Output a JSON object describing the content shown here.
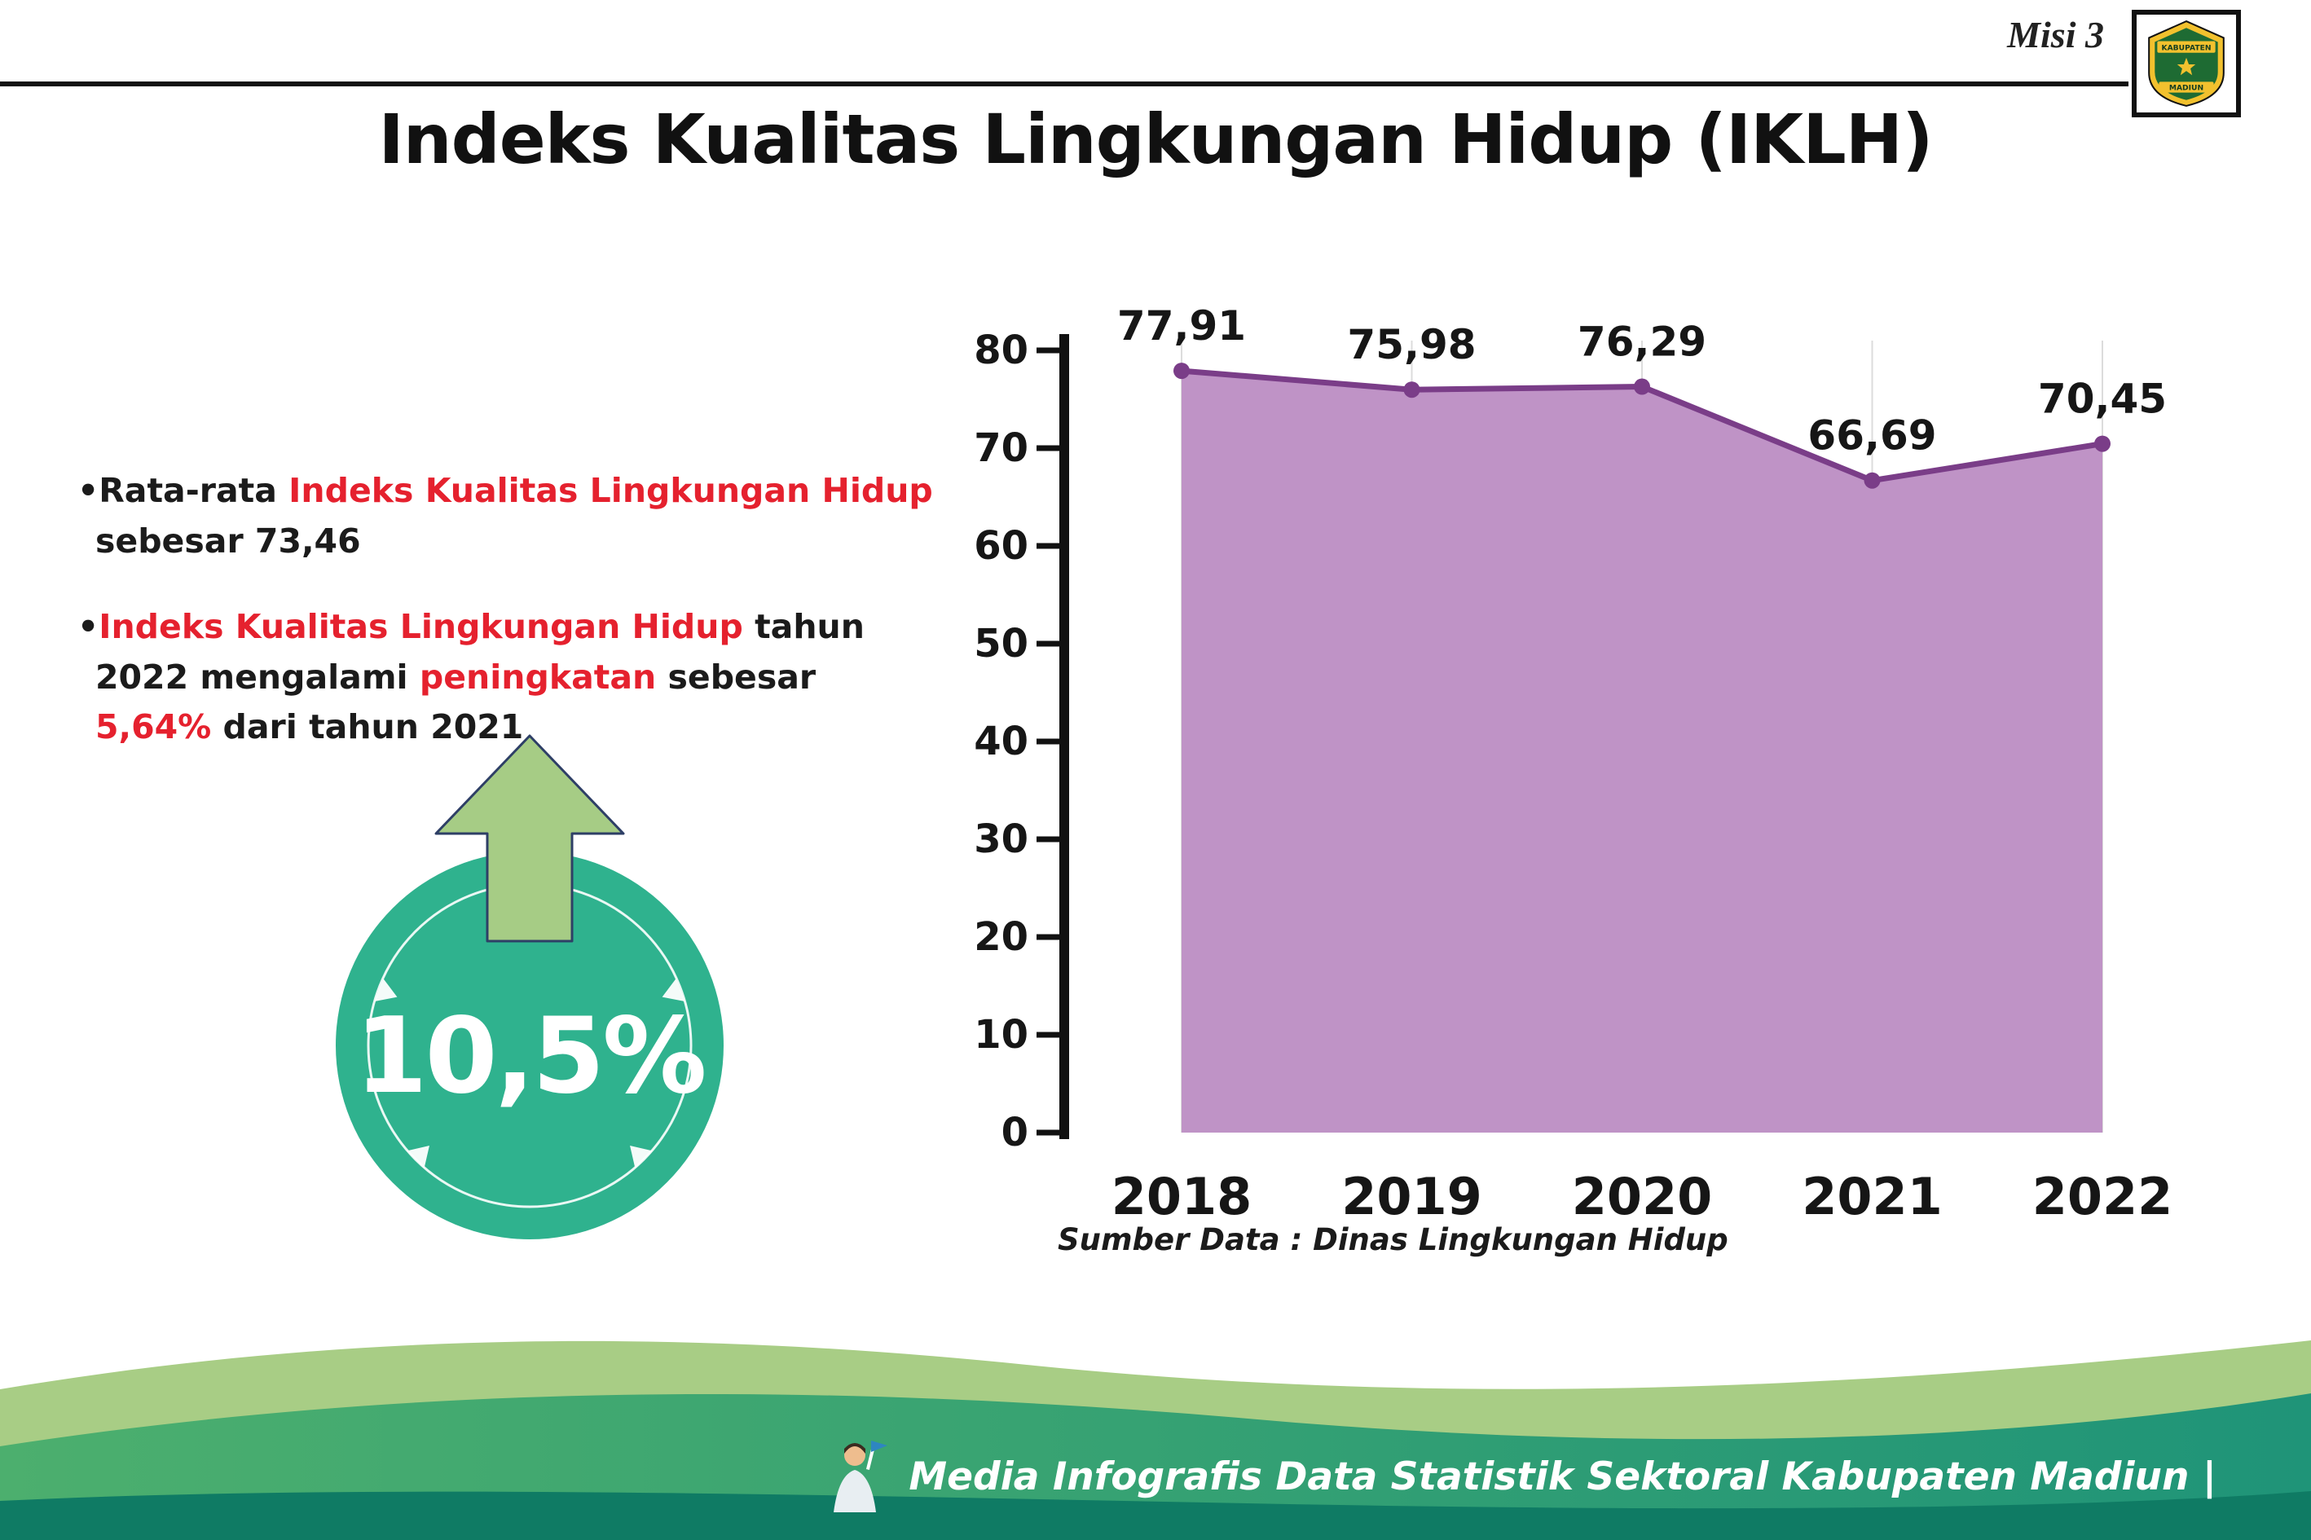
{
  "header": {
    "misi_label": "Misi 3",
    "logo": {
      "top_text": "KABUPATEN",
      "bottom_text": "MADIUN"
    }
  },
  "title": "Indeks Kualitas Lingkungan Hidup (IKLH)",
  "bullets": {
    "dot": "•",
    "b1": {
      "prefix": "Rata-rata ",
      "highlight": "Indeks Kualitas Lingkungan Hidup",
      "suffix": " sebesar 73,46"
    },
    "b2": {
      "h1": "Indeks Kualitas Lingkungan Hidup",
      "t1": " tahun 2022 mengalami ",
      "h2": "peningkatan",
      "t2": " sebesar ",
      "h3": "5,64%",
      "t3": " dari tahun 2021"
    }
  },
  "badge": {
    "value": "10,5%"
  },
  "chart_data": {
    "type": "area",
    "categories": [
      "2018",
      "2019",
      "2020",
      "2021",
      "2022"
    ],
    "values": [
      77.91,
      75.98,
      76.29,
      66.69,
      70.45
    ],
    "value_labels": [
      "77,91",
      "75,98",
      "76,29",
      "66,69",
      "70,45"
    ],
    "ylim": [
      0,
      80
    ],
    "yticks": [
      0,
      10,
      20,
      30,
      40,
      50,
      60,
      70,
      80
    ],
    "xlabel": "",
    "ylabel": "",
    "legend": "none",
    "grid": "vertical-light",
    "fill_color": "#bf93c6",
    "line_color": "#7a3d88",
    "source": "Sumber Data : Dinas Lingkungan Hidup"
  },
  "badge_colors": {
    "circle": "#2fb28e",
    "arrow": "#a6cc85",
    "arrow_outline": "#2e3f66"
  },
  "accent_colors": {
    "red": "#e5212e",
    "wave_light": "#a8cd85",
    "wave_dark": "#0f7b64"
  },
  "footer": {
    "text": "Media Infografis Data Statistik Sektoral Kabupaten Madiun |"
  }
}
